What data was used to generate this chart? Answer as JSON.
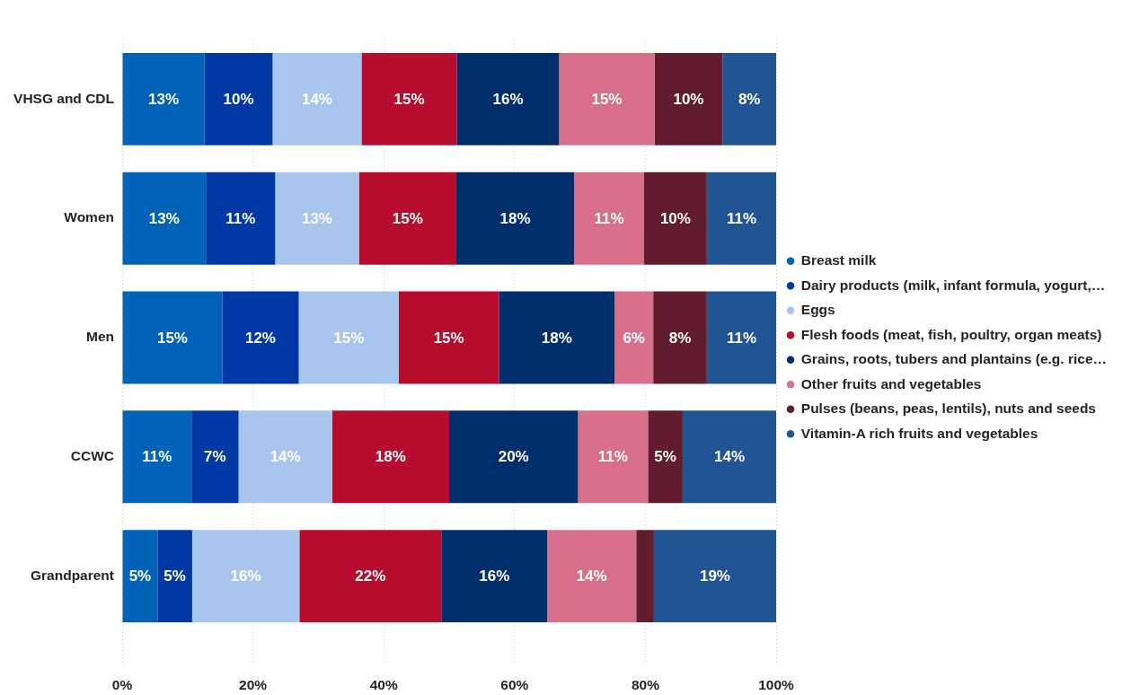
{
  "chart_data": {
    "type": "bar",
    "orientation": "horizontal",
    "stacked": true,
    "categories": [
      "VHSG and CDL",
      "Women",
      "Men",
      "CCWC",
      "Grandparent"
    ],
    "series": [
      {
        "name": "Breast milk",
        "color": "#0063b7",
        "values": [
          12.6,
          12.8,
          15.3,
          10.6,
          5.4
        ],
        "value_labels": [
          "13%",
          "13%",
          "15%",
          "11%",
          "5%"
        ]
      },
      {
        "name": "Dairy products (milk, infant formula, yogurt,…",
        "color": "#0039a6",
        "values": [
          10.4,
          10.6,
          11.7,
          7.2,
          5.3
        ],
        "value_labels": [
          "10%",
          "11%",
          "12%",
          "7%",
          "5%"
        ]
      },
      {
        "name": "Eggs",
        "color": "#a8c6ed",
        "values": [
          13.6,
          12.8,
          15.3,
          14.3,
          16.4
        ],
        "value_labels": [
          "14%",
          "13%",
          "15%",
          "14%",
          "16%"
        ]
      },
      {
        "name": "Flesh foods (meat, fish, poultry, organ meats)",
        "color": "#b60c2d",
        "values": [
          14.6,
          14.9,
          15.3,
          17.9,
          21.7
        ],
        "value_labels": [
          "15%",
          "15%",
          "15%",
          "18%",
          "22%"
        ]
      },
      {
        "name": "Grains, roots, tubers and plantains (e.g. rice…",
        "color": "#002f6b",
        "values": [
          15.6,
          18.0,
          17.7,
          19.7,
          16.2
        ],
        "value_labels": [
          "16%",
          "18%",
          "18%",
          "20%",
          "16%"
        ]
      },
      {
        "name": "Other fruits and vegetables",
        "color": "#d8708c",
        "values": [
          14.6,
          10.7,
          5.9,
          10.7,
          13.6
        ],
        "value_labels": [
          "15%",
          "11%",
          "6%",
          "11%",
          "14%"
        ]
      },
      {
        "name": "Pulses (beans, peas, lentils), nuts and seeds",
        "color": "#611c2e",
        "values": [
          10.4,
          9.6,
          8.2,
          5.3,
          2.7
        ],
        "value_labels": [
          "10%",
          "10%",
          "8%",
          "5%",
          null
        ]
      },
      {
        "name": "Vitamin-A rich fruits and vegetables",
        "color": "#215495",
        "values": [
          8.2,
          10.6,
          10.6,
          14.3,
          18.7
        ],
        "value_labels": [
          "8%",
          "11%",
          "11%",
          "14%",
          "19%"
        ]
      }
    ],
    "xlim": [
      0,
      100
    ],
    "xticks": [
      {
        "value": 0,
        "label": "0%"
      },
      {
        "value": 20,
        "label": "20%"
      },
      {
        "value": 40,
        "label": "40%"
      },
      {
        "value": 60,
        "label": "60%"
      },
      {
        "value": 80,
        "label": "80%"
      },
      {
        "value": 100,
        "label": "100%"
      }
    ],
    "grid": "x",
    "legend": "right"
  }
}
